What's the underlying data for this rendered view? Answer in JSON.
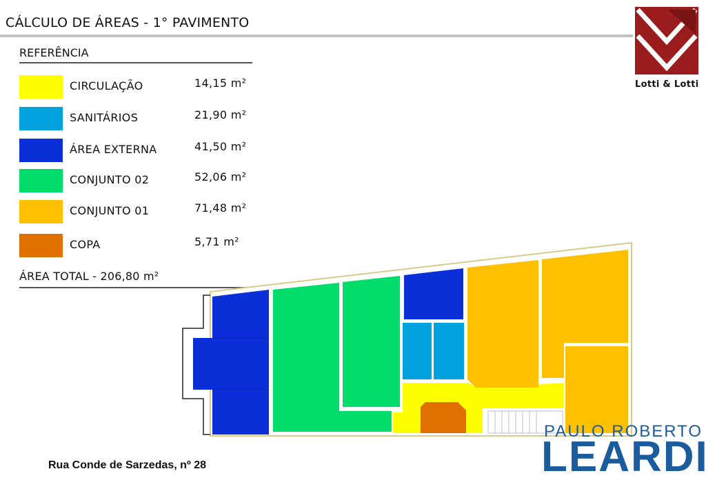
{
  "header": {
    "title": "CÁLCULO DE ÁREAS - 1° PAVIMENTO"
  },
  "legend": {
    "heading": "REFERÊNCIA",
    "items": [
      {
        "name": "CIRCULAÇÃO",
        "area": "14,15 m²",
        "color": "#ffff00"
      },
      {
        "name": "SANITÁRIOS",
        "area": "21,90  m²",
        "color": "#00a2dd"
      },
      {
        "name": "ÁREA EXTERNA",
        "area": "41,50  m²",
        "color": "#0a2fd9"
      },
      {
        "name": "CONJUNTO 02",
        "area": "52,06 m²",
        "color": "#00dd6a"
      },
      {
        "name": "CONJUNTO 01",
        "area": "71,48 m²",
        "color": "#ffc000"
      },
      {
        "name": "COPA",
        "area": "5,71 m²",
        "color": "#e07000"
      }
    ],
    "total": "ÁREA TOTAL - 206,80 m²"
  },
  "logo": {
    "text": "Lotti & Lotti",
    "color": "#9b1c1c"
  },
  "footer": {
    "address": "Rua Conde de Sarzedas, nº 28"
  },
  "watermark": {
    "line1": "PAULO ROBERTO",
    "line2": "LEARDI",
    "color": "#1a5c9e"
  }
}
